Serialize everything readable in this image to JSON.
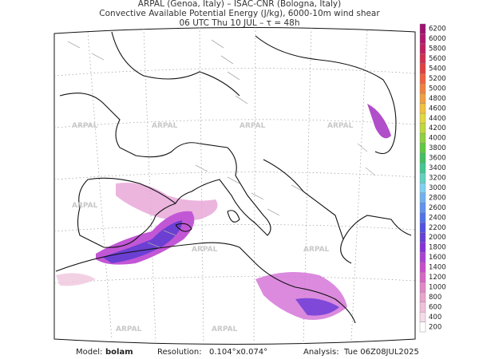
{
  "header": {
    "line1": "ARPAL (Genoa, Italy)  –  ISAC-CNR (Bologna, Italy)",
    "line2": "Convective Available Potential Energy (J/kg), 6000-10m wind shear",
    "line3": "06 UTC Thu 10 JUL  –  τ = 48h"
  },
  "watermark": "ARPAL",
  "colorbar": {
    "levels": [
      {
        "value": 200,
        "color": "#ffffff"
      },
      {
        "value": 400,
        "color": "#f6dbe9"
      },
      {
        "value": 600,
        "color": "#f0c0da"
      },
      {
        "value": 800,
        "color": "#e9a4cc"
      },
      {
        "value": 1000,
        "color": "#e187c6"
      },
      {
        "value": 1200,
        "color": "#d766c4"
      },
      {
        "value": 1400,
        "color": "#c84ec8"
      },
      {
        "value": 1600,
        "color": "#a942d2"
      },
      {
        "value": 1800,
        "color": "#8533d8"
      },
      {
        "value": 2000,
        "color": "#6640d2"
      },
      {
        "value": 2200,
        "color": "#5252e0"
      },
      {
        "value": 2400,
        "color": "#5272e8"
      },
      {
        "value": 2600,
        "color": "#6092f0"
      },
      {
        "value": 2800,
        "color": "#70b2f0"
      },
      {
        "value": 3000,
        "color": "#80d0f0"
      },
      {
        "value": 3200,
        "color": "#60d0c0"
      },
      {
        "value": 3400,
        "color": "#40c890"
      },
      {
        "value": 3600,
        "color": "#40c060"
      },
      {
        "value": 3800,
        "color": "#60c840"
      },
      {
        "value": 4000,
        "color": "#90d040"
      },
      {
        "value": 4200,
        "color": "#c0d840"
      },
      {
        "value": 4400,
        "color": "#e0d840"
      },
      {
        "value": 4600,
        "color": "#f0c040"
      },
      {
        "value": 4800,
        "color": "#f0a040"
      },
      {
        "value": 5000,
        "color": "#f08040"
      },
      {
        "value": 5200,
        "color": "#f06040"
      },
      {
        "value": 5400,
        "color": "#e04040"
      },
      {
        "value": 5600,
        "color": "#d03050"
      },
      {
        "value": 5800,
        "color": "#c02060"
      },
      {
        "value": 6000,
        "color": "#b01870"
      },
      {
        "value": 6200,
        "color": "#a01070"
      }
    ]
  },
  "footer": {
    "model_label": "Model:",
    "model": "bolam",
    "resolution_label": "Resolution:",
    "resolution": "0.104°x0.074°",
    "analysis_label": "Analysis:",
    "analysis": "Tue 06Z08JUL2025"
  }
}
